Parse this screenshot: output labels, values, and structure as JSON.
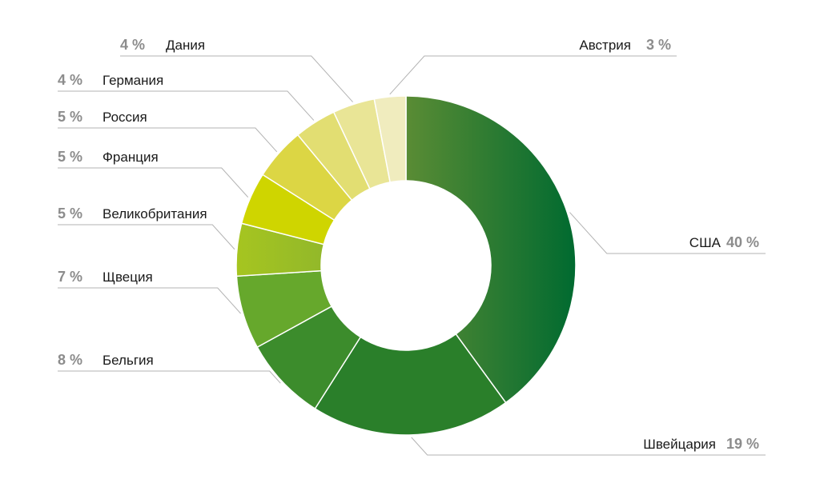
{
  "chart_data": {
    "type": "pie",
    "categories": [
      "США",
      "Швейцария",
      "Бельгия",
      "Щвеция",
      "Великобритания",
      "Франция",
      "Россия",
      "Германия",
      "Дания",
      "Австрия"
    ],
    "values": [
      40,
      19,
      8,
      7,
      5,
      5,
      5,
      4,
      4,
      3
    ],
    "value_labels": [
      "40 %",
      "19 %",
      "8 %",
      "7 %",
      "5 %",
      "5 %",
      "5 %",
      "4 %",
      "4 %",
      "3 %"
    ],
    "colors": [
      "#1e6f2e",
      "#2a7f2a",
      "#3c8c2c",
      "#66a82c",
      "#a6c520",
      "#cfd500",
      "#dcd644",
      "#e2de72",
      "#e9e596",
      "#f0ecbe"
    ],
    "gradient_end": {
      "США": "#006a30",
      "Великобритания": "#92b82a"
    },
    "title": "",
    "legend": "leader-line labels"
  }
}
